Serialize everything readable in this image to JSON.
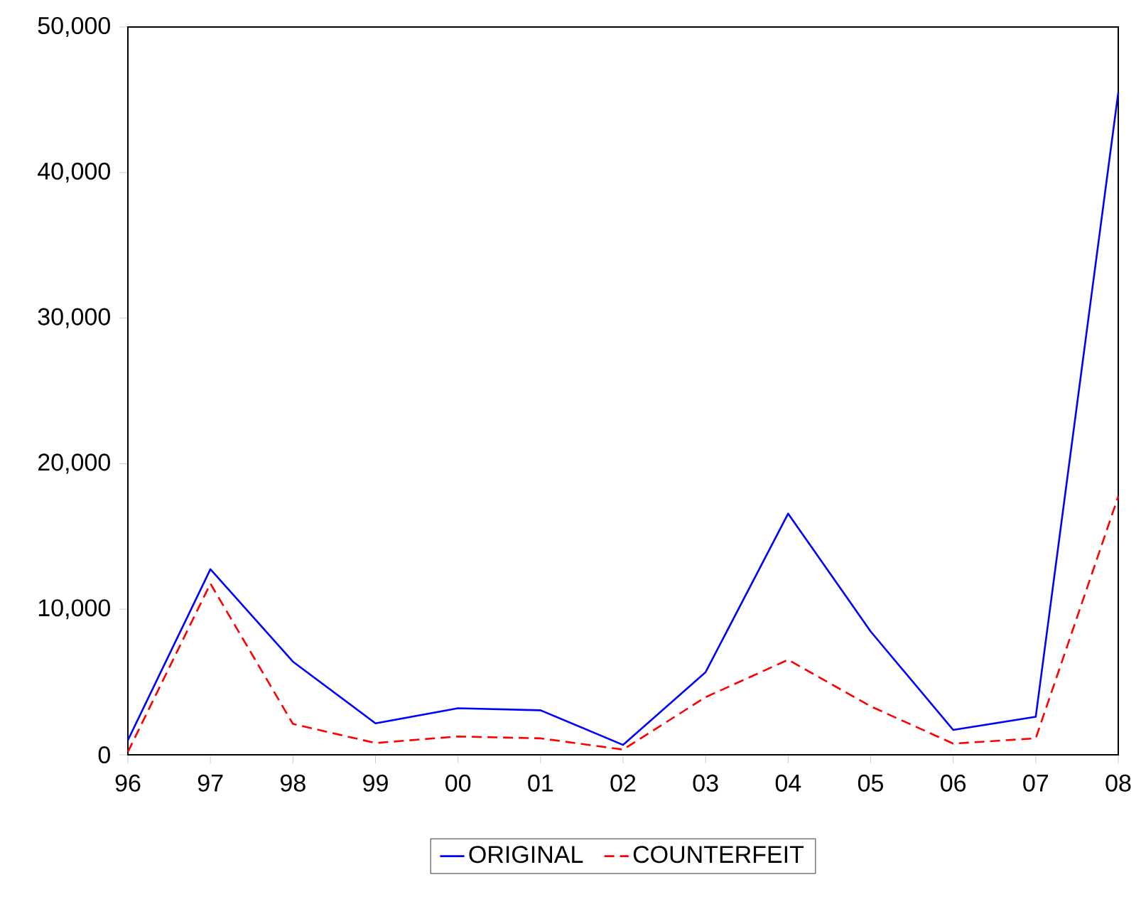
{
  "chart_data": {
    "type": "line",
    "categories": [
      "96",
      "97",
      "98",
      "99",
      "00",
      "01",
      "02",
      "03",
      "04",
      "05",
      "06",
      "07",
      "08"
    ],
    "series": [
      {
        "name": "ORIGINAL",
        "color": "#0000ff",
        "line_style": "solid",
        "values": [
          1000,
          12750,
          6400,
          2160,
          3200,
          3060,
          680,
          5680,
          16570,
          8470,
          1710,
          2610,
          45500
        ]
      },
      {
        "name": "COUNTERFEIT",
        "color": "#ff0000",
        "line_style": "dashed",
        "values": [
          200,
          11760,
          2120,
          810,
          1260,
          1130,
          360,
          3960,
          6530,
          3330,
          770,
          1130,
          17750
        ]
      }
    ],
    "ylim": [
      0,
      50000
    ],
    "yticks": [
      {
        "value": 0,
        "label": "0"
      },
      {
        "value": 10000,
        "label": "10,000"
      },
      {
        "value": 20000,
        "label": "20,000"
      },
      {
        "value": 30000,
        "label": "30,000"
      },
      {
        "value": 40000,
        "label": "40,000"
      },
      {
        "value": 50000,
        "label": "50,000"
      }
    ],
    "grid": false,
    "legend": "bottom"
  }
}
